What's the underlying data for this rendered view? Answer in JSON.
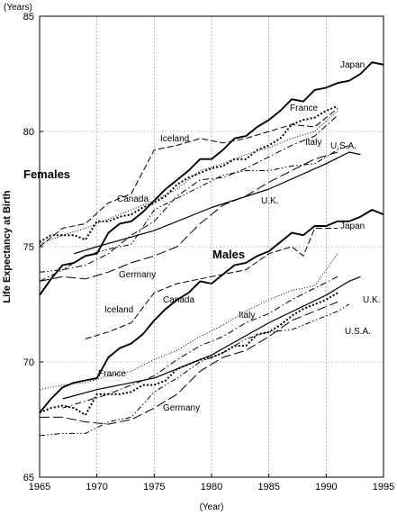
{
  "chart_data": {
    "type": "line",
    "title": "",
    "xlabel": "(Year)",
    "ylabel": "Life Expectancy at Birth",
    "y_unit": "(Years)",
    "xlim": [
      1965,
      1995
    ],
    "ylim": [
      65,
      85
    ],
    "x_ticks": [
      1965,
      1970,
      1975,
      1980,
      1985,
      1990,
      1995
    ],
    "y_ticks": [
      65,
      70,
      75,
      80,
      85
    ],
    "grid": true,
    "legend": "none (series labeled directly on lines)",
    "group_labels": [
      "Females",
      "Males"
    ],
    "series": [
      {
        "name": "Japan",
        "group": "Females",
        "style": "solid-thick",
        "x": [
          1965,
          1966,
          1967,
          1968,
          1969,
          1970,
          1971,
          1972,
          1973,
          1974,
          1975,
          1976,
          1977,
          1978,
          1979,
          1980,
          1981,
          1982,
          1983,
          1984,
          1985,
          1986,
          1987,
          1988,
          1989,
          1990,
          1991,
          1992,
          1993,
          1994,
          1995
        ],
        "y": [
          72.9,
          73.6,
          74.2,
          74.3,
          74.6,
          74.7,
          75.6,
          76.0,
          76.1,
          76.5,
          77.0,
          77.5,
          77.9,
          78.3,
          78.8,
          78.8,
          79.2,
          79.7,
          79.8,
          80.2,
          80.5,
          80.9,
          81.4,
          81.3,
          81.8,
          81.9,
          82.1,
          82.2,
          82.5,
          83.0,
          82.9
        ]
      },
      {
        "name": "France",
        "group": "Females",
        "style": "dotted-thick",
        "x": [
          1965,
          1966,
          1967,
          1968,
          1969,
          1970,
          1971,
          1972,
          1973,
          1974,
          1975,
          1976,
          1977,
          1978,
          1979,
          1980,
          1981,
          1982,
          1983,
          1984,
          1985,
          1986,
          1987,
          1988,
          1989,
          1990,
          1991
        ],
        "y": [
          75.2,
          75.5,
          75.5,
          75.5,
          75.3,
          76.1,
          76.1,
          76.3,
          76.4,
          76.7,
          76.9,
          77.2,
          77.7,
          78.0,
          78.2,
          78.4,
          78.5,
          78.8,
          78.8,
          79.2,
          79.4,
          79.7,
          80.3,
          80.5,
          80.6,
          80.9,
          81.1
        ]
      },
      {
        "name": "Iceland",
        "group": "Females",
        "style": "dashed",
        "x": [
          1965,
          1967,
          1969,
          1971,
          1973,
          1975,
          1977,
          1979,
          1981,
          1983,
          1985,
          1987,
          1989,
          1991
        ],
        "y": [
          75.0,
          75.8,
          76.0,
          76.9,
          77.3,
          79.2,
          79.4,
          79.7,
          79.5,
          79.7,
          80.0,
          80.3,
          80.2,
          81.0
        ]
      },
      {
        "name": "Canada",
        "group": "Females",
        "style": "dotted",
        "x": [
          1965,
          1967,
          1969,
          1971,
          1973,
          1975,
          1977,
          1979,
          1981,
          1983,
          1985,
          1987,
          1989,
          1991
        ],
        "y": [
          75.1,
          75.5,
          75.8,
          76.2,
          76.6,
          77.0,
          77.5,
          78.3,
          78.6,
          79.0,
          79.3,
          79.7,
          80.0,
          80.9
        ]
      },
      {
        "name": "Italy",
        "group": "Females",
        "style": "dash-dot",
        "x": [
          1965,
          1967,
          1969,
          1971,
          1973,
          1975,
          1977,
          1979,
          1981,
          1983,
          1985,
          1987,
          1989,
          1991
        ],
        "y": [
          73.5,
          74.0,
          74.2,
          74.7,
          75.5,
          76.1,
          77.2,
          77.9,
          78.0,
          78.4,
          78.9,
          79.4,
          79.8,
          80.7
        ]
      },
      {
        "name": "U.S.A.",
        "group": "Females",
        "style": "dash-dot-dot",
        "x": [
          1965,
          1967,
          1969,
          1971,
          1973,
          1975,
          1977,
          1979,
          1981,
          1983,
          1985,
          1987,
          1989,
          1991,
          1992
        ],
        "y": [
          73.9,
          74.0,
          74.6,
          74.9,
          75.1,
          76.6,
          77.1,
          77.6,
          78.1,
          78.3,
          78.3,
          78.5,
          78.6,
          79.2,
          79.4
        ]
      },
      {
        "name": "U.K.",
        "group": "Females",
        "style": "solid",
        "x": [
          1968,
          1970,
          1975,
          1980,
          1985,
          1990,
          1992,
          1993
        ],
        "y": [
          74.7,
          75.0,
          75.7,
          76.7,
          77.5,
          78.6,
          79.1,
          79.0
        ]
      },
      {
        "name": "Germany",
        "group": "Females",
        "style": "long-dash",
        "x": [
          1965,
          1967,
          1969,
          1971,
          1973,
          1975,
          1977,
          1979,
          1981,
          1983,
          1985,
          1987,
          1989,
          1991
        ],
        "y": [
          73.5,
          73.7,
          73.6,
          73.9,
          74.3,
          74.6,
          75.0,
          76.0,
          76.8,
          77.2,
          77.8,
          78.3,
          78.8,
          79.1
        ]
      },
      {
        "name": "Japan",
        "group": "Males",
        "style": "solid-thick",
        "x": [
          1965,
          1966,
          1967,
          1968,
          1969,
          1970,
          1971,
          1972,
          1973,
          1974,
          1975,
          1976,
          1977,
          1978,
          1979,
          1980,
          1981,
          1982,
          1983,
          1984,
          1985,
          1986,
          1987,
          1988,
          1989,
          1990,
          1991,
          1992,
          1993,
          1994,
          1995
        ],
        "y": [
          67.8,
          68.4,
          68.9,
          69.1,
          69.2,
          69.3,
          70.2,
          70.6,
          70.8,
          71.2,
          71.8,
          72.3,
          72.7,
          73.0,
          73.5,
          73.4,
          73.8,
          74.2,
          74.3,
          74.6,
          74.8,
          75.2,
          75.6,
          75.5,
          75.9,
          75.9,
          76.1,
          76.1,
          76.3,
          76.6,
          76.4
        ]
      },
      {
        "name": "Iceland",
        "group": "Males",
        "style": "dashed",
        "x": [
          1969,
          1971,
          1973,
          1975,
          1977,
          1979,
          1981,
          1983,
          1985,
          1987,
          1988,
          1989,
          1991
        ],
        "y": [
          71.0,
          71.3,
          71.7,
          73.0,
          73.4,
          73.6,
          73.8,
          74.0,
          74.7,
          75.0,
          74.6,
          75.8,
          75.8
        ]
      },
      {
        "name": "Canada",
        "group": "Males",
        "style": "dotted",
        "x": [
          1965,
          1967,
          1969,
          1971,
          1973,
          1975,
          1977,
          1979,
          1981,
          1983,
          1985,
          1987,
          1989,
          1991
        ],
        "y": [
          68.8,
          69.0,
          69.1,
          69.4,
          69.6,
          70.1,
          70.5,
          71.1,
          71.6,
          72.2,
          72.7,
          73.1,
          73.3,
          74.7
        ]
      },
      {
        "name": "U.K.",
        "group": "Males",
        "style": "solid",
        "x": [
          1967,
          1970,
          1975,
          1980,
          1985,
          1990,
          1992,
          1993
        ],
        "y": [
          68.4,
          68.8,
          69.3,
          70.3,
          71.7,
          72.9,
          73.5,
          73.7
        ]
      },
      {
        "name": "Italy",
        "group": "Males",
        "style": "dash-dot",
        "x": [
          1967,
          1969,
          1971,
          1973,
          1975,
          1977,
          1979,
          1981,
          1983,
          1985,
          1987,
          1989,
          1991
        ],
        "y": [
          68.0,
          68.3,
          68.6,
          69.0,
          69.4,
          70.1,
          70.7,
          71.1,
          71.7,
          72.1,
          72.7,
          73.2,
          73.7
        ]
      },
      {
        "name": "U.S.A.",
        "group": "Males",
        "style": "dash-dot-dot",
        "x": [
          1965,
          1967,
          1969,
          1971,
          1973,
          1975,
          1977,
          1979,
          1981,
          1983,
          1985,
          1987,
          1989,
          1991,
          1992
        ],
        "y": [
          66.8,
          66.9,
          66.9,
          67.4,
          67.6,
          68.7,
          69.3,
          70.0,
          70.4,
          71.0,
          71.3,
          71.4,
          71.8,
          72.2,
          72.5
        ]
      },
      {
        "name": "France",
        "group": "Males",
        "style": "dotted-thick",
        "x": [
          1965,
          1966,
          1967,
          1968,
          1969,
          1970,
          1971,
          1972,
          1973,
          1974,
          1975,
          1976,
          1977,
          1978,
          1979,
          1980,
          1981,
          1982,
          1983,
          1984,
          1985,
          1986,
          1987,
          1988,
          1989,
          1990,
          1991
        ],
        "y": [
          67.8,
          68.0,
          68.1,
          68.0,
          67.7,
          68.6,
          68.6,
          68.6,
          68.7,
          69.0,
          69.0,
          69.2,
          69.7,
          69.9,
          70.1,
          70.2,
          70.4,
          70.7,
          70.7,
          71.2,
          71.3,
          71.6,
          72.0,
          72.3,
          72.5,
          72.7,
          73.0
        ]
      },
      {
        "name": "Germany",
        "group": "Males",
        "style": "long-dash",
        "x": [
          1965,
          1967,
          1969,
          1971,
          1973,
          1975,
          1977,
          1979,
          1981,
          1983,
          1985,
          1987,
          1989,
          1991
        ],
        "y": [
          67.6,
          67.6,
          67.4,
          67.3,
          67.5,
          68.0,
          68.6,
          69.6,
          70.2,
          70.5,
          71.1,
          71.8,
          72.2,
          72.6
        ]
      }
    ],
    "annotations": [
      {
        "text": "Japan"
      },
      {
        "text": "France"
      },
      {
        "text": "Iceland"
      },
      {
        "text": "Italy"
      },
      {
        "text": "U.S.A."
      },
      {
        "text": "Canada"
      },
      {
        "text": "U.K."
      },
      {
        "text": "Germany"
      },
      {
        "text": "Japan"
      },
      {
        "text": "Iceland"
      },
      {
        "text": "Canada"
      },
      {
        "text": "Italy"
      },
      {
        "text": "U.K."
      },
      {
        "text": "U.S.A."
      },
      {
        "text": "France"
      },
      {
        "text": "Germany"
      }
    ]
  }
}
